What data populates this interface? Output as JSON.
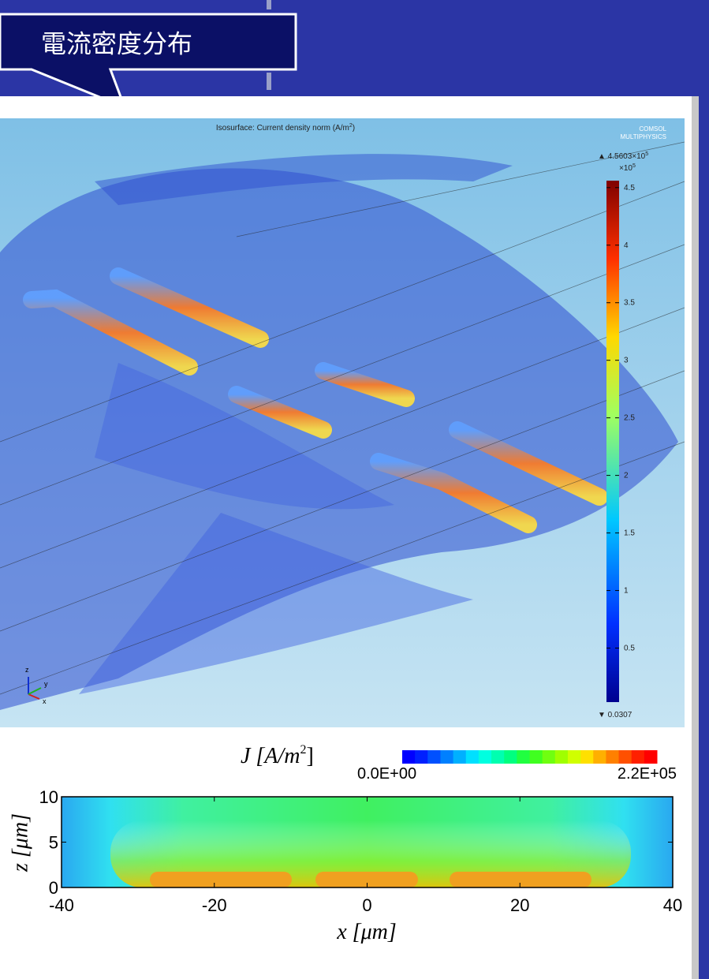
{
  "callout": {
    "title": "電流密度分布"
  },
  "render3d": {
    "title": "Isosurface: Current density norm (A/m",
    "title_sup": "2",
    "title_end": ")",
    "logo": [
      "COMSOL",
      "MULTIPHYSICS"
    ],
    "colorbar": {
      "max_label": "▲ 4.5603×10",
      "max_exp": "5",
      "scale_label": "×10",
      "scale_exp": "5",
      "min_label": "▼ 0.0307",
      "range": [
        0.0307,
        4.5603
      ],
      "ticks": [
        0.5,
        1,
        1.5,
        2,
        2.5,
        3,
        3.5,
        4,
        4.5
      ]
    },
    "axes_triad": [
      "z",
      "y",
      "x"
    ]
  },
  "plot2d": {
    "colorbar_title": "J [A/m",
    "colorbar_title_sup": "2",
    "colorbar_title_end": "]",
    "colorbar_labels": [
      "0.0E+00",
      "2.2E+05"
    ],
    "xlabel": "x [μm]",
    "ylabel": "z [μm]",
    "xlim": [
      -40,
      40
    ],
    "xticks": [
      -40,
      -20,
      0,
      20,
      40
    ],
    "ylim": [
      0,
      10
    ],
    "yticks": [
      0,
      5,
      10
    ]
  }
}
